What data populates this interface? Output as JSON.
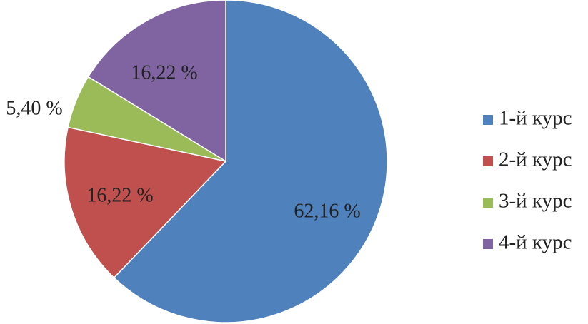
{
  "chart_data": {
    "type": "pie",
    "title": "",
    "start_angle_deg": 0,
    "direction": "clockwise",
    "legend_position": "right",
    "slices": [
      {
        "label": "1-й курс",
        "value": 62.16,
        "value_label": "62,16 %",
        "color": "#4F81BD"
      },
      {
        "label": "2-й курс",
        "value": 16.22,
        "value_label": "16,22 %",
        "color": "#C0504D"
      },
      {
        "label": "3-й курс",
        "value": 5.4,
        "value_label": "5,40 %",
        "color": "#9BBB59"
      },
      {
        "label": "4-й курс",
        "value": 16.22,
        "value_label": "16,22 %",
        "color": "#8064A2"
      }
    ]
  }
}
